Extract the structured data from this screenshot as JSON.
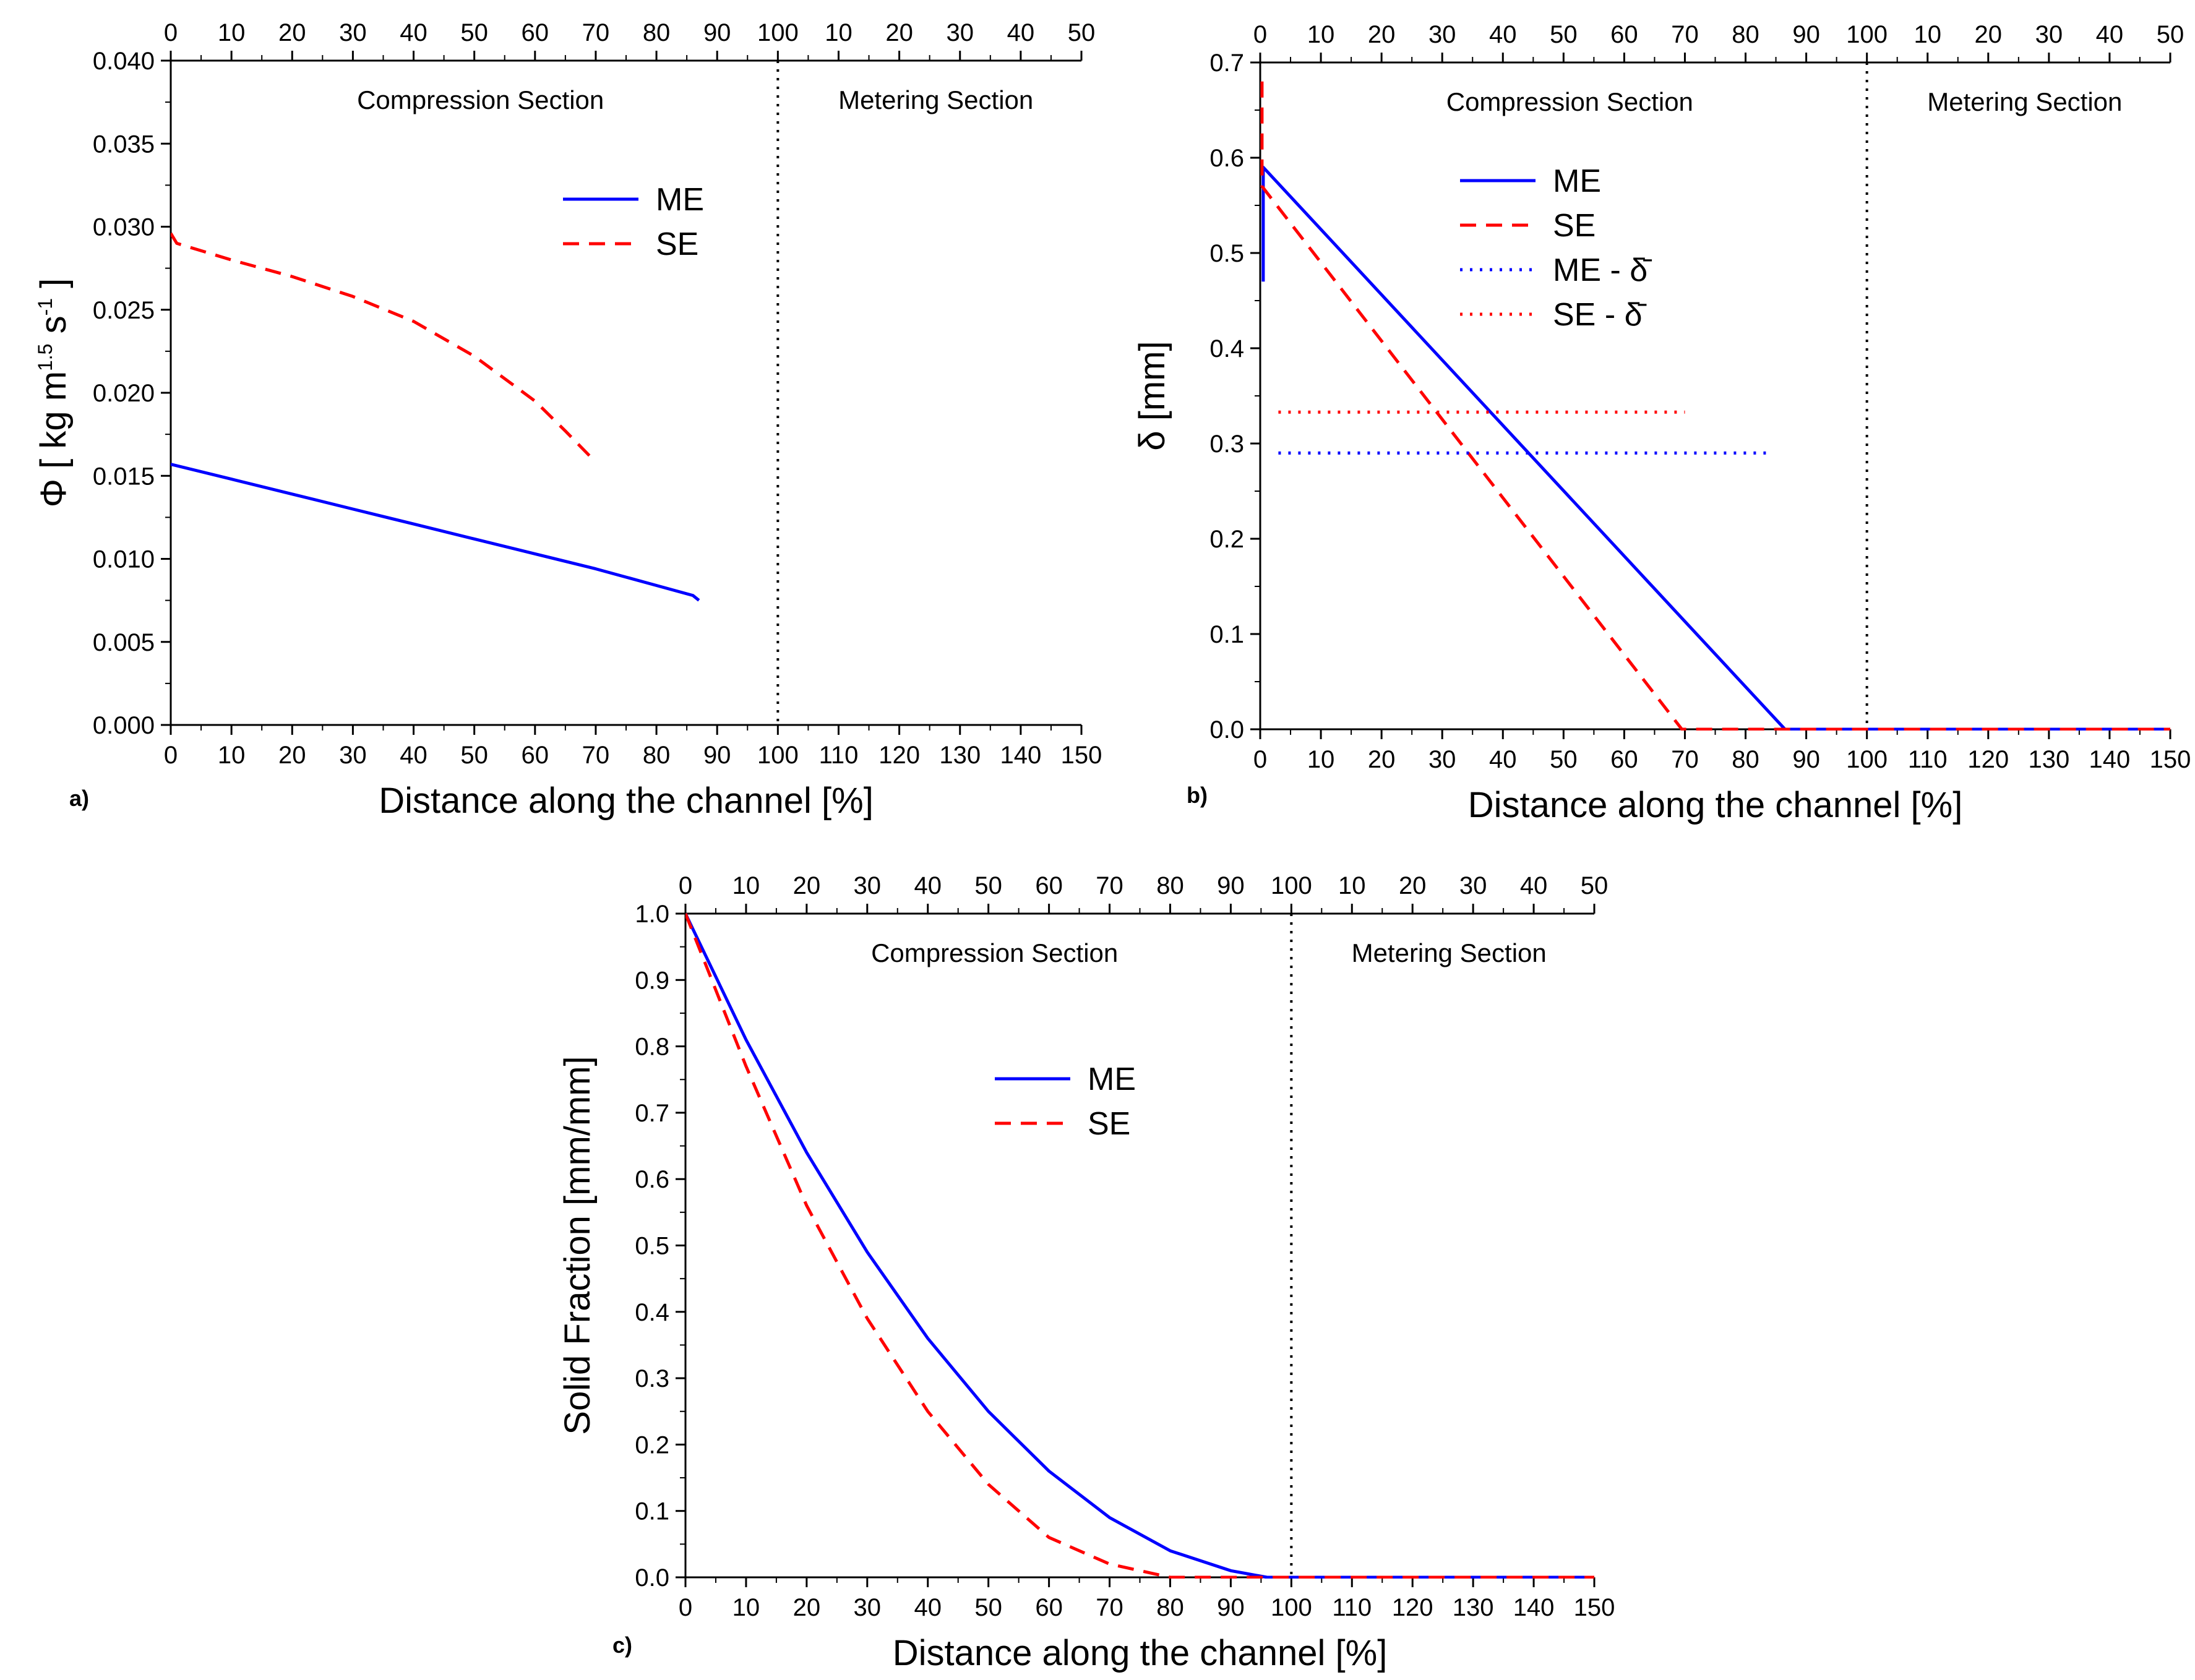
{
  "colors": {
    "me": "#0000ff",
    "se": "#ff0000",
    "axis": "#000000"
  },
  "chart_data": [
    {
      "panel": "a)",
      "type": "line",
      "xlabel": "Distance along the channel [%]",
      "ylabel": "Φ [ kg m",
      "ylabel_sup1": "1.5",
      "ylabel_mid": " s",
      "ylabel_sup2": "-1",
      "ylabel_end": "]",
      "xlim": [
        0,
        150
      ],
      "ylim": [
        0,
        0.04
      ],
      "yticks": [
        "0.000",
        "0.005",
        "0.010",
        "0.015",
        "0.020",
        "0.025",
        "0.030",
        "0.035",
        "0.040"
      ],
      "bottom_ticks": [
        "0",
        "10",
        "20",
        "30",
        "40",
        "50",
        "60",
        "70",
        "80",
        "90",
        "100",
        "110",
        "120",
        "130",
        "140",
        "150"
      ],
      "top_ticks": [
        "0",
        "10",
        "20",
        "30",
        "40",
        "50",
        "60",
        "70",
        "80",
        "90",
        "100",
        "10",
        "20",
        "30",
        "40",
        "50"
      ],
      "section_divider_x": 100,
      "section_labels": [
        "Compression Section",
        "Metering Section"
      ],
      "legend": {
        "placement": "upper-middle",
        "entries": [
          "ME",
          "SE"
        ]
      },
      "series": [
        {
          "name": "ME",
          "style": "solid",
          "color": "#0000ff",
          "x": [
            0,
            10,
            20,
            30,
            40,
            50,
            60,
            70,
            80,
            86,
            87
          ],
          "y": [
            0.0157,
            0.0148,
            0.0139,
            0.013,
            0.0121,
            0.0112,
            0.0103,
            0.0094,
            0.0084,
            0.0078,
            0.0075
          ]
        },
        {
          "name": "SE",
          "style": "dashed",
          "color": "#ff0000",
          "x": [
            0,
            1,
            10,
            20,
            30,
            40,
            50,
            60,
            65,
            69
          ],
          "y": [
            0.0296,
            0.029,
            0.028,
            0.027,
            0.0258,
            0.0243,
            0.0222,
            0.0195,
            0.0177,
            0.0162
          ]
        }
      ]
    },
    {
      "panel": "b)",
      "type": "line",
      "xlabel": "Distance along the channel [%]",
      "ylabel": "δ [mm]",
      "xlim": [
        0,
        150
      ],
      "ylim": [
        0,
        0.7
      ],
      "yticks": [
        "0.0",
        "0.1",
        "0.2",
        "0.3",
        "0.4",
        "0.5",
        "0.6",
        "0.7"
      ],
      "bottom_ticks": [
        "0",
        "10",
        "20",
        "30",
        "40",
        "50",
        "60",
        "70",
        "80",
        "90",
        "100",
        "110",
        "120",
        "130",
        "140",
        "150"
      ],
      "top_ticks": [
        "0",
        "10",
        "20",
        "30",
        "40",
        "50",
        "60",
        "70",
        "80",
        "90",
        "100",
        "10",
        "20",
        "30",
        "40",
        "50"
      ],
      "section_divider_x": 100,
      "section_labels": [
        "Compression Section",
        "Metering Section"
      ],
      "legend": {
        "placement": "upper-left",
        "entries": [
          "ME",
          "SE",
          "ME - δ̄",
          "SE - δ̄"
        ]
      },
      "series": [
        {
          "name": "ME",
          "style": "solid",
          "color": "#0000ff",
          "x": [
            0.5,
            0.5,
            86.5,
            150
          ],
          "y": [
            0.47,
            0.59,
            0.0,
            0.0
          ]
        },
        {
          "name": "SE",
          "style": "dashed",
          "color": "#ff0000",
          "x": [
            0.3,
            0.3,
            69.5,
            150
          ],
          "y": [
            0.68,
            0.57,
            0.0,
            0.0
          ]
        },
        {
          "name": "ME - δ̄",
          "style": "dotted",
          "color": "#0000ff",
          "x": [
            3,
            84
          ],
          "y": [
            0.29,
            0.29
          ]
        },
        {
          "name": "SE - δ̄",
          "style": "dotted",
          "color": "#ff0000",
          "x": [
            3,
            70
          ],
          "y": [
            0.333,
            0.333
          ]
        }
      ]
    },
    {
      "panel": "c)",
      "type": "line",
      "xlabel": "Distance along the channel [%]",
      "ylabel": "Solid Fraction [mm/mm]",
      "xlim": [
        0,
        150
      ],
      "ylim": [
        0,
        1.0
      ],
      "yticks": [
        "0.0",
        "0.1",
        "0.2",
        "0.3",
        "0.4",
        "0.5",
        "0.6",
        "0.7",
        "0.8",
        "0.9",
        "1.0"
      ],
      "bottom_ticks": [
        "0",
        "10",
        "20",
        "30",
        "40",
        "50",
        "60",
        "70",
        "80",
        "90",
        "100",
        "110",
        "120",
        "130",
        "140",
        "150"
      ],
      "top_ticks": [
        "0",
        "10",
        "20",
        "30",
        "40",
        "50",
        "60",
        "70",
        "80",
        "90",
        "100",
        "10",
        "20",
        "30",
        "40",
        "50"
      ],
      "section_divider_x": 100,
      "section_labels": [
        "Compression Section",
        "Metering Section"
      ],
      "legend": {
        "placement": "upper-middle",
        "entries": [
          "ME",
          "SE"
        ]
      },
      "series": [
        {
          "name": "ME",
          "style": "solid",
          "color": "#0000ff",
          "x": [
            0,
            10,
            20,
            30,
            40,
            50,
            60,
            70,
            80,
            90,
            96,
            100,
            150
          ],
          "y": [
            1.0,
            0.81,
            0.64,
            0.49,
            0.36,
            0.25,
            0.16,
            0.09,
            0.04,
            0.01,
            0.0,
            0.0,
            0.0
          ]
        },
        {
          "name": "SE",
          "style": "dashed",
          "color": "#ff0000",
          "x": [
            0,
            10,
            20,
            30,
            40,
            50,
            60,
            70,
            80,
            100,
            150
          ],
          "y": [
            1.0,
            0.77,
            0.56,
            0.39,
            0.25,
            0.14,
            0.06,
            0.02,
            0.0,
            0.0,
            0.0
          ]
        }
      ]
    }
  ]
}
